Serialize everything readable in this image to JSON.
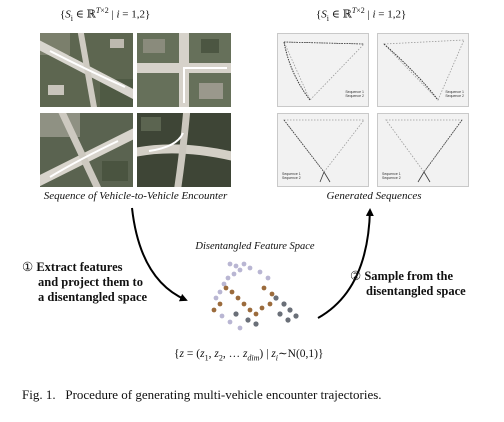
{
  "left_panel": {
    "set_label": "{S_i ∈ ℝ^{T×2} | i = 1,2}",
    "caption": "Sequence of Vehicle-to-Vehicle Encounter"
  },
  "right_panel": {
    "set_label": "{S_i ∈ ℝ^{T×2} | i = 1,2}",
    "caption": "Generated Sequences",
    "legend_lines": [
      "Sequence 1",
      "Sequence 2"
    ]
  },
  "center": {
    "title": "Disentangled Feature Space",
    "formula": "{z = (z₁, z₂, … z_dim) | zᵢ∼N(0,1)}"
  },
  "steps": {
    "left_num": "①",
    "left_lines": [
      "Extract features",
      "and project them to",
      "a disentangled space"
    ],
    "right_num": "②",
    "right_lines": [
      "Sample from the",
      "disentangled space"
    ]
  },
  "figure_caption": {
    "label": "Fig. 1.",
    "text": "Procedure of generating multi-vehicle encounter trajectories."
  },
  "colors": {
    "aerial_base": "#6b6f5a",
    "road": "#d9d6cf",
    "trajectory": "#ffffff",
    "cluster_grey": "#6a6f78",
    "cluster_brown": "#9b6b3c",
    "cluster_lavender": "#b9b6d3"
  }
}
